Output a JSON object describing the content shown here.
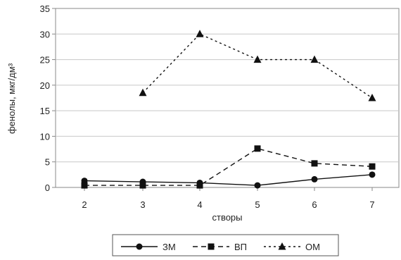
{
  "chart_data": {
    "type": "line",
    "xlabel": "створы",
    "ylabel": "фенолы, мкг/дм³",
    "x": [
      2,
      3,
      4,
      5,
      6,
      7
    ],
    "ylim": [
      0,
      35
    ],
    "yticks": [
      0,
      5,
      10,
      15,
      20,
      25,
      30,
      35
    ],
    "grid": "horizontal",
    "legend_position": "bottom",
    "series": [
      {
        "name": "ЗМ",
        "marker": "circle",
        "line": "solid",
        "values": [
          1.3,
          1.1,
          0.9,
          0.4,
          1.6,
          2.5
        ]
      },
      {
        "name": "ВП",
        "marker": "square",
        "line": "dashed",
        "values": [
          0.4,
          0.4,
          0.4,
          7.6,
          4.7,
          4.1
        ]
      },
      {
        "name": "ОМ",
        "marker": "triangle",
        "line": "dotted",
        "values": [
          null,
          18.5,
          30.0,
          25.0,
          25.0,
          17.5
        ]
      }
    ],
    "colors": {
      "lines": "#111111",
      "grid": "#c8c8c8",
      "frame": "#888888"
    }
  }
}
